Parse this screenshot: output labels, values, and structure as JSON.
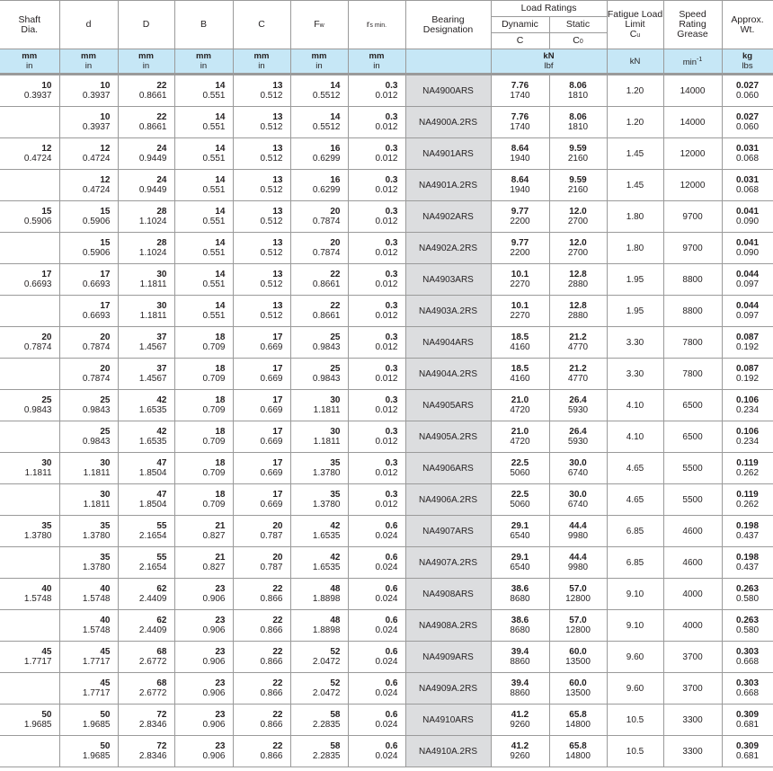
{
  "headers": {
    "shaft": "Shaft Dia.",
    "d": "d",
    "D": "D",
    "B": "B",
    "C": "C",
    "Fw": "F",
    "Fw_sub": "w",
    "rs": "r",
    "rs_sub": "s min.",
    "designation": "Bearing Designation",
    "load_ratings": "Load Ratings",
    "dynamic": "Dynamic",
    "static": "Static",
    "dyn_sym": "C",
    "stat_sym": "C",
    "stat_sub": "0",
    "fatigue": "Fatigue Load Limit",
    "fatigue_sym": "C",
    "fatigue_sub": "u",
    "speed": "Speed Rating Grease",
    "weight": "Approx. Wt."
  },
  "units": {
    "mm": "mm",
    "in": "in",
    "kN": "kN",
    "lbf": "lbf",
    "fatigue": "kN",
    "speed": "min",
    "speed_sup": "-1",
    "kg": "kg",
    "lbs": "lbs"
  },
  "rows": [
    {
      "shaft": [
        "10",
        "0.3937"
      ],
      "d": [
        "10",
        "0.3937"
      ],
      "D": [
        "22",
        "0.8661"
      ],
      "B": [
        "14",
        "0.551"
      ],
      "C": [
        "13",
        "0.512"
      ],
      "Fw": [
        "14",
        "0.5512"
      ],
      "rs": [
        "0.3",
        "0.012"
      ],
      "designation": "NA4900ARS",
      "dyn": [
        "7.76",
        "1740"
      ],
      "stat": [
        "8.06",
        "1810"
      ],
      "cu": "1.20",
      "speed": "14000",
      "wt": [
        "0.027",
        "0.060"
      ]
    },
    {
      "shaft": [
        "",
        ""
      ],
      "d": [
        "10",
        "0.3937"
      ],
      "D": [
        "22",
        "0.8661"
      ],
      "B": [
        "14",
        "0.551"
      ],
      "C": [
        "13",
        "0.512"
      ],
      "Fw": [
        "14",
        "0.5512"
      ],
      "rs": [
        "0.3",
        "0.012"
      ],
      "designation": "NA4900A.2RS",
      "dyn": [
        "7.76",
        "1740"
      ],
      "stat": [
        "8.06",
        "1810"
      ],
      "cu": "1.20",
      "speed": "14000",
      "wt": [
        "0.027",
        "0.060"
      ]
    },
    {
      "shaft": [
        "12",
        "0.4724"
      ],
      "d": [
        "12",
        "0.4724"
      ],
      "D": [
        "24",
        "0.9449"
      ],
      "B": [
        "14",
        "0.551"
      ],
      "C": [
        "13",
        "0.512"
      ],
      "Fw": [
        "16",
        "0.6299"
      ],
      "rs": [
        "0.3",
        "0.012"
      ],
      "designation": "NA4901ARS",
      "dyn": [
        "8.64",
        "1940"
      ],
      "stat": [
        "9.59",
        "2160"
      ],
      "cu": "1.45",
      "speed": "12000",
      "wt": [
        "0.031",
        "0.068"
      ]
    },
    {
      "shaft": [
        "",
        ""
      ],
      "d": [
        "12",
        "0.4724"
      ],
      "D": [
        "24",
        "0.9449"
      ],
      "B": [
        "14",
        "0.551"
      ],
      "C": [
        "13",
        "0.512"
      ],
      "Fw": [
        "16",
        "0.6299"
      ],
      "rs": [
        "0.3",
        "0.012"
      ],
      "designation": "NA4901A.2RS",
      "dyn": [
        "8.64",
        "1940"
      ],
      "stat": [
        "9.59",
        "2160"
      ],
      "cu": "1.45",
      "speed": "12000",
      "wt": [
        "0.031",
        "0.068"
      ]
    },
    {
      "shaft": [
        "15",
        "0.5906"
      ],
      "d": [
        "15",
        "0.5906"
      ],
      "D": [
        "28",
        "1.1024"
      ],
      "B": [
        "14",
        "0.551"
      ],
      "C": [
        "13",
        "0.512"
      ],
      "Fw": [
        "20",
        "0.7874"
      ],
      "rs": [
        "0.3",
        "0.012"
      ],
      "designation": "NA4902ARS",
      "dyn": [
        "9.77",
        "2200"
      ],
      "stat": [
        "12.0",
        "2700"
      ],
      "cu": "1.80",
      "speed": "9700",
      "wt": [
        "0.041",
        "0.090"
      ]
    },
    {
      "shaft": [
        "",
        ""
      ],
      "d": [
        "15",
        "0.5906"
      ],
      "D": [
        "28",
        "1.1024"
      ],
      "B": [
        "14",
        "0.551"
      ],
      "C": [
        "13",
        "0.512"
      ],
      "Fw": [
        "20",
        "0.7874"
      ],
      "rs": [
        "0.3",
        "0.012"
      ],
      "designation": "NA4902A.2RS",
      "dyn": [
        "9.77",
        "2200"
      ],
      "stat": [
        "12.0",
        "2700"
      ],
      "cu": "1.80",
      "speed": "9700",
      "wt": [
        "0.041",
        "0.090"
      ]
    },
    {
      "shaft": [
        "17",
        "0.6693"
      ],
      "d": [
        "17",
        "0.6693"
      ],
      "D": [
        "30",
        "1.1811"
      ],
      "B": [
        "14",
        "0.551"
      ],
      "C": [
        "13",
        "0.512"
      ],
      "Fw": [
        "22",
        "0.8661"
      ],
      "rs": [
        "0.3",
        "0.012"
      ],
      "designation": "NA4903ARS",
      "dyn": [
        "10.1",
        "2270"
      ],
      "stat": [
        "12.8",
        "2880"
      ],
      "cu": "1.95",
      "speed": "8800",
      "wt": [
        "0.044",
        "0.097"
      ]
    },
    {
      "shaft": [
        "",
        ""
      ],
      "d": [
        "17",
        "0.6693"
      ],
      "D": [
        "30",
        "1.1811"
      ],
      "B": [
        "14",
        "0.551"
      ],
      "C": [
        "13",
        "0.512"
      ],
      "Fw": [
        "22",
        "0.8661"
      ],
      "rs": [
        "0.3",
        "0.012"
      ],
      "designation": "NA4903A.2RS",
      "dyn": [
        "10.1",
        "2270"
      ],
      "stat": [
        "12.8",
        "2880"
      ],
      "cu": "1.95",
      "speed": "8800",
      "wt": [
        "0.044",
        "0.097"
      ]
    },
    {
      "shaft": [
        "20",
        "0.7874"
      ],
      "d": [
        "20",
        "0.7874"
      ],
      "D": [
        "37",
        "1.4567"
      ],
      "B": [
        "18",
        "0.709"
      ],
      "C": [
        "17",
        "0.669"
      ],
      "Fw": [
        "25",
        "0.9843"
      ],
      "rs": [
        "0.3",
        "0.012"
      ],
      "designation": "NA4904ARS",
      "dyn": [
        "18.5",
        "4160"
      ],
      "stat": [
        "21.2",
        "4770"
      ],
      "cu": "3.30",
      "speed": "7800",
      "wt": [
        "0.087",
        "0.192"
      ]
    },
    {
      "shaft": [
        "",
        ""
      ],
      "d": [
        "20",
        "0.7874"
      ],
      "D": [
        "37",
        "1.4567"
      ],
      "B": [
        "18",
        "0.709"
      ],
      "C": [
        "17",
        "0.669"
      ],
      "Fw": [
        "25",
        "0.9843"
      ],
      "rs": [
        "0.3",
        "0.012"
      ],
      "designation": "NA4904A.2RS",
      "dyn": [
        "18.5",
        "4160"
      ],
      "stat": [
        "21.2",
        "4770"
      ],
      "cu": "3.30",
      "speed": "7800",
      "wt": [
        "0.087",
        "0.192"
      ]
    },
    {
      "shaft": [
        "25",
        "0.9843"
      ],
      "d": [
        "25",
        "0.9843"
      ],
      "D": [
        "42",
        "1.6535"
      ],
      "B": [
        "18",
        "0.709"
      ],
      "C": [
        "17",
        "0.669"
      ],
      "Fw": [
        "30",
        "1.1811"
      ],
      "rs": [
        "0.3",
        "0.012"
      ],
      "designation": "NA4905ARS",
      "dyn": [
        "21.0",
        "4720"
      ],
      "stat": [
        "26.4",
        "5930"
      ],
      "cu": "4.10",
      "speed": "6500",
      "wt": [
        "0.106",
        "0.234"
      ]
    },
    {
      "shaft": [
        "",
        ""
      ],
      "d": [
        "25",
        "0.9843"
      ],
      "D": [
        "42",
        "1.6535"
      ],
      "B": [
        "18",
        "0.709"
      ],
      "C": [
        "17",
        "0.669"
      ],
      "Fw": [
        "30",
        "1.1811"
      ],
      "rs": [
        "0.3",
        "0.012"
      ],
      "designation": "NA4905A.2RS",
      "dyn": [
        "21.0",
        "4720"
      ],
      "stat": [
        "26.4",
        "5930"
      ],
      "cu": "4.10",
      "speed": "6500",
      "wt": [
        "0.106",
        "0.234"
      ]
    },
    {
      "shaft": [
        "30",
        "1.1811"
      ],
      "d": [
        "30",
        "1.1811"
      ],
      "D": [
        "47",
        "1.8504"
      ],
      "B": [
        "18",
        "0.709"
      ],
      "C": [
        "17",
        "0.669"
      ],
      "Fw": [
        "35",
        "1.3780"
      ],
      "rs": [
        "0.3",
        "0.012"
      ],
      "designation": "NA4906ARS",
      "dyn": [
        "22.5",
        "5060"
      ],
      "stat": [
        "30.0",
        "6740"
      ],
      "cu": "4.65",
      "speed": "5500",
      "wt": [
        "0.119",
        "0.262"
      ]
    },
    {
      "shaft": [
        "",
        ""
      ],
      "d": [
        "30",
        "1.1811"
      ],
      "D": [
        "47",
        "1.8504"
      ],
      "B": [
        "18",
        "0.709"
      ],
      "C": [
        "17",
        "0.669"
      ],
      "Fw": [
        "35",
        "1.3780"
      ],
      "rs": [
        "0.3",
        "0.012"
      ],
      "designation": "NA4906A.2RS",
      "dyn": [
        "22.5",
        "5060"
      ],
      "stat": [
        "30.0",
        "6740"
      ],
      "cu": "4.65",
      "speed": "5500",
      "wt": [
        "0.119",
        "0.262"
      ]
    },
    {
      "shaft": [
        "35",
        "1.3780"
      ],
      "d": [
        "35",
        "1.3780"
      ],
      "D": [
        "55",
        "2.1654"
      ],
      "B": [
        "21",
        "0.827"
      ],
      "C": [
        "20",
        "0.787"
      ],
      "Fw": [
        "42",
        "1.6535"
      ],
      "rs": [
        "0.6",
        "0.024"
      ],
      "designation": "NA4907ARS",
      "dyn": [
        "29.1",
        "6540"
      ],
      "stat": [
        "44.4",
        "9980"
      ],
      "cu": "6.85",
      "speed": "4600",
      "wt": [
        "0.198",
        "0.437"
      ]
    },
    {
      "shaft": [
        "",
        ""
      ],
      "d": [
        "35",
        "1.3780"
      ],
      "D": [
        "55",
        "2.1654"
      ],
      "B": [
        "21",
        "0.827"
      ],
      "C": [
        "20",
        "0.787"
      ],
      "Fw": [
        "42",
        "1.6535"
      ],
      "rs": [
        "0.6",
        "0.024"
      ],
      "designation": "NA4907A.2RS",
      "dyn": [
        "29.1",
        "6540"
      ],
      "stat": [
        "44.4",
        "9980"
      ],
      "cu": "6.85",
      "speed": "4600",
      "wt": [
        "0.198",
        "0.437"
      ]
    },
    {
      "shaft": [
        "40",
        "1.5748"
      ],
      "d": [
        "40",
        "1.5748"
      ],
      "D": [
        "62",
        "2.4409"
      ],
      "B": [
        "23",
        "0.906"
      ],
      "C": [
        "22",
        "0.866"
      ],
      "Fw": [
        "48",
        "1.8898"
      ],
      "rs": [
        "0.6",
        "0.024"
      ],
      "designation": "NA4908ARS",
      "dyn": [
        "38.6",
        "8680"
      ],
      "stat": [
        "57.0",
        "12800"
      ],
      "cu": "9.10",
      "speed": "4000",
      "wt": [
        "0.263",
        "0.580"
      ]
    },
    {
      "shaft": [
        "",
        ""
      ],
      "d": [
        "40",
        "1.5748"
      ],
      "D": [
        "62",
        "2.4409"
      ],
      "B": [
        "23",
        "0.906"
      ],
      "C": [
        "22",
        "0.866"
      ],
      "Fw": [
        "48",
        "1.8898"
      ],
      "rs": [
        "0.6",
        "0.024"
      ],
      "designation": "NA4908A.2RS",
      "dyn": [
        "38.6",
        "8680"
      ],
      "stat": [
        "57.0",
        "12800"
      ],
      "cu": "9.10",
      "speed": "4000",
      "wt": [
        "0.263",
        "0.580"
      ]
    },
    {
      "shaft": [
        "45",
        "1.7717"
      ],
      "d": [
        "45",
        "1.7717"
      ],
      "D": [
        "68",
        "2.6772"
      ],
      "B": [
        "23",
        "0.906"
      ],
      "C": [
        "22",
        "0.866"
      ],
      "Fw": [
        "52",
        "2.0472"
      ],
      "rs": [
        "0.6",
        "0.024"
      ],
      "designation": "NA4909ARS",
      "dyn": [
        "39.4",
        "8860"
      ],
      "stat": [
        "60.0",
        "13500"
      ],
      "cu": "9.60",
      "speed": "3700",
      "wt": [
        "0.303",
        "0.668"
      ]
    },
    {
      "shaft": [
        "",
        ""
      ],
      "d": [
        "45",
        "1.7717"
      ],
      "D": [
        "68",
        "2.6772"
      ],
      "B": [
        "23",
        "0.906"
      ],
      "C": [
        "22",
        "0.866"
      ],
      "Fw": [
        "52",
        "2.0472"
      ],
      "rs": [
        "0.6",
        "0.024"
      ],
      "designation": "NA4909A.2RS",
      "dyn": [
        "39.4",
        "8860"
      ],
      "stat": [
        "60.0",
        "13500"
      ],
      "cu": "9.60",
      "speed": "3700",
      "wt": [
        "0.303",
        "0.668"
      ]
    },
    {
      "shaft": [
        "50",
        "1.9685"
      ],
      "d": [
        "50",
        "1.9685"
      ],
      "D": [
        "72",
        "2.8346"
      ],
      "B": [
        "23",
        "0.906"
      ],
      "C": [
        "22",
        "0.866"
      ],
      "Fw": [
        "58",
        "2.2835"
      ],
      "rs": [
        "0.6",
        "0.024"
      ],
      "designation": "NA4910ARS",
      "dyn": [
        "41.2",
        "9260"
      ],
      "stat": [
        "65.8",
        "14800"
      ],
      "cu": "10.5",
      "speed": "3300",
      "wt": [
        "0.309",
        "0.681"
      ]
    },
    {
      "shaft": [
        "",
        ""
      ],
      "d": [
        "50",
        "1.9685"
      ],
      "D": [
        "72",
        "2.8346"
      ],
      "B": [
        "23",
        "0.906"
      ],
      "C": [
        "22",
        "0.866"
      ],
      "Fw": [
        "58",
        "2.2835"
      ],
      "rs": [
        "0.6",
        "0.024"
      ],
      "designation": "NA4910A.2RS",
      "dyn": [
        "41.2",
        "9260"
      ],
      "stat": [
        "65.8",
        "14800"
      ],
      "cu": "10.5",
      "speed": "3300",
      "wt": [
        "0.309",
        "0.681"
      ]
    }
  ]
}
